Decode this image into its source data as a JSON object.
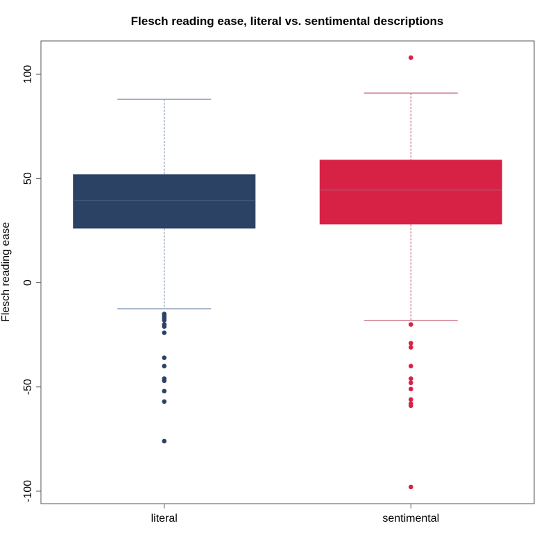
{
  "chart_data": {
    "type": "box",
    "title": "Flesch reading ease, literal vs. sentimental descriptions",
    "xlabel": "",
    "ylabel": "Flesch reading ease",
    "ylim": [
      -106,
      116
    ],
    "yticks": [
      100,
      50,
      0,
      -50,
      -100
    ],
    "ytick_labels": [
      "100",
      "50",
      "0",
      "-50",
      "-100"
    ],
    "grid": false,
    "categories": [
      "literal",
      "sentimental"
    ],
    "series": [
      {
        "category": "literal",
        "whisker_low": -12.5,
        "q1": 26,
        "median": 39.5,
        "q3": 52,
        "whisker_high": 88,
        "outliers": [
          -15,
          -16,
          -17,
          -18,
          -20,
          -21,
          -24,
          -36,
          -40,
          -46,
          -47,
          -52,
          -57,
          -76
        ],
        "fill": "#2c4264",
        "median_color": "#46597a",
        "whisker_color": "#7e93b2",
        "outlier_color": "#2c4264"
      },
      {
        "category": "sentimental",
        "whisker_low": -18,
        "q1": 28,
        "median": 44.5,
        "q3": 59,
        "whisker_high": 91,
        "outliers": [
          108,
          -20,
          -29,
          -31,
          -40,
          -46,
          -48,
          -51,
          -56,
          -58,
          -59,
          -98
        ],
        "fill": "#d72246",
        "median_color": "#b94a5c",
        "whisker_color": "#c86478",
        "outlier_color": "#d72246"
      }
    ]
  }
}
